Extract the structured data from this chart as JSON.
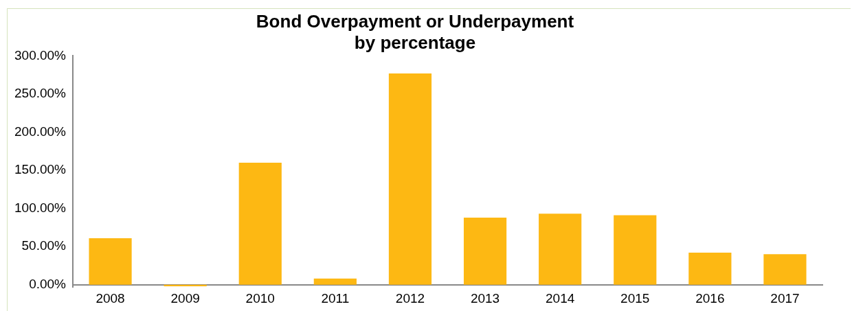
{
  "chart_data": {
    "type": "bar",
    "title": [
      "Bond Overpayment or Underpayment",
      "by percentage"
    ],
    "categories": [
      "2008",
      "2009",
      "2010",
      "2011",
      "2012",
      "2013",
      "2014",
      "2015",
      "2016",
      "2017"
    ],
    "values": [
      61,
      -2,
      160,
      8,
      277,
      88,
      93,
      91,
      42,
      40
    ],
    "color": "#fdb813",
    "ylim": [
      -3,
      300
    ],
    "yticks": [
      {
        "value": 0,
        "label": "0.00%"
      },
      {
        "value": 50,
        "label": "50.00%"
      },
      {
        "value": 100,
        "label": "100.00%"
      },
      {
        "value": 150,
        "label": "150.00%"
      },
      {
        "value": 200,
        "label": "200.00%"
      },
      {
        "value": 250,
        "label": "250.00%"
      },
      {
        "value": 300,
        "label": "300.00%"
      }
    ],
    "grid": false,
    "legend": false
  }
}
